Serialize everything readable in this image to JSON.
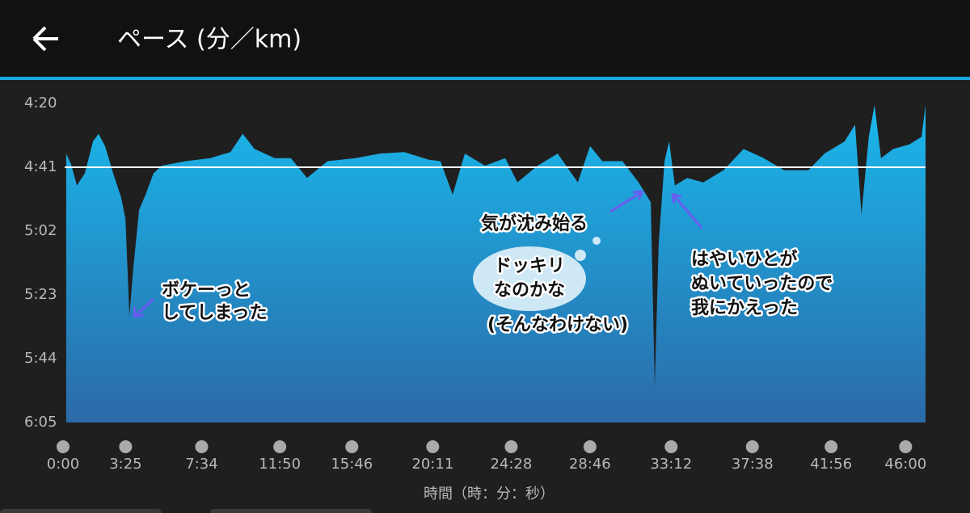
{
  "header": {
    "title": "ペース (分／km)"
  },
  "chart_data": {
    "type": "area",
    "x_label": "時間（時：分：秒）",
    "color": "#1aa8e0",
    "x": [
      5,
      21,
      40,
      66,
      93,
      111,
      132,
      159,
      185,
      199,
      212,
      225,
      244,
      265,
      291,
      318,
      397,
      477,
      543,
      583,
      622,
      688,
      741,
      794,
      861,
      953,
      1033,
      1112,
      1192,
      1231,
      1271,
      1311,
      1377,
      1443,
      1483,
      1549,
      1615,
      1681,
      1721,
      1761,
      1827,
      1880,
      1920,
      1933,
      1946,
      1965,
      1980,
      1999,
      2039,
      2092,
      2158,
      2224,
      2290,
      2357,
      2436,
      2489,
      2555,
      2589,
      2610,
      2634,
      2653,
      2674,
      2714,
      2767,
      2807,
      2820
    ],
    "values": [
      276.5,
      280,
      287,
      283,
      272.5,
      270,
      274,
      283,
      291,
      298,
      330,
      314,
      295,
      290,
      283,
      280.5,
      279,
      278,
      276,
      270,
      275,
      278,
      278,
      284.5,
      279,
      278,
      276.5,
      276,
      278.5,
      279,
      290,
      276.5,
      280.5,
      278,
      286,
      280.5,
      276.5,
      286,
      274,
      279,
      279,
      286,
      292.5,
      353,
      306,
      279,
      272.5,
      287,
      284.5,
      286,
      282,
      275,
      278,
      282,
      282,
      276.5,
      272.5,
      267,
      296.5,
      271,
      260.5,
      278,
      275,
      273.5,
      271,
      260.5
    ],
    "avg_line": 281,
    "xlim": [
      0,
      2820
    ],
    "ylim": [
      365,
      260
    ],
    "yticks": [
      {
        "value": 260,
        "label": "4:20"
      },
      {
        "value": 281,
        "label": "4:41"
      },
      {
        "value": 302,
        "label": "5:02"
      },
      {
        "value": 323,
        "label": "5:23"
      },
      {
        "value": 344,
        "label": "5:44"
      },
      {
        "value": 365,
        "label": "6:05"
      }
    ],
    "xticks": [
      {
        "value": 0,
        "label": "0:00"
      },
      {
        "value": 205,
        "label": "3:25"
      },
      {
        "value": 454,
        "label": "7:34"
      },
      {
        "value": 710,
        "label": "11:50"
      },
      {
        "value": 946,
        "label": "15:46"
      },
      {
        "value": 1211,
        "label": "20:11"
      },
      {
        "value": 1468,
        "label": "24:28"
      },
      {
        "value": 1726,
        "label": "28:46"
      },
      {
        "value": 1992,
        "label": "33:12"
      },
      {
        "value": 2258,
        "label": "37:38"
      },
      {
        "value": 2516,
        "label": "41:56"
      },
      {
        "value": 2760,
        "label": "46:00"
      }
    ],
    "annotations": [
      "ボケーっと",
      "してしまった",
      "気が沈み始る",
      "ドッキリ",
      "なのかな",
      "(そんなわけない)",
      "はやいひとが",
      "ぬいていったので",
      "我にかえった"
    ]
  }
}
